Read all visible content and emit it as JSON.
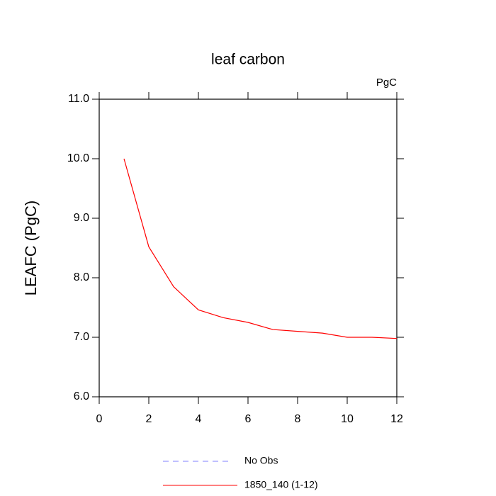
{
  "chart_data": {
    "type": "line",
    "title": "leaf carbon",
    "units": "PgC",
    "y_label": "LEAFC  (PgC)",
    "x": [
      1,
      2,
      3,
      4,
      5,
      6,
      7,
      8,
      9,
      10,
      11,
      12
    ],
    "series": [
      {
        "name": "No Obs",
        "color": "#8080ff",
        "linestyle": "dashed",
        "values": [
          null,
          null,
          null,
          null,
          null,
          null,
          null,
          null,
          null,
          null,
          null,
          null
        ]
      },
      {
        "name": "1850_140 (1-12)",
        "color": "#ff0000",
        "linestyle": "solid",
        "values": [
          10.0,
          8.52,
          7.85,
          7.46,
          7.33,
          7.25,
          7.13,
          7.1,
          7.07,
          7.0,
          7.0,
          6.98
        ]
      }
    ],
    "xlim": [
      0,
      12
    ],
    "xticks": [
      0,
      2,
      4,
      6,
      8,
      10,
      12
    ],
    "ylim": [
      6.0,
      11.0
    ],
    "yticks": [
      {
        "value": 6,
        "label": "6.0"
      },
      {
        "value": 7,
        "label": "7.0"
      },
      {
        "value": 8,
        "label": "8.0"
      },
      {
        "value": 9,
        "label": "9.0"
      },
      {
        "value": 10,
        "label": "10.0"
      },
      {
        "value": 11,
        "label": "11.0"
      }
    ]
  }
}
